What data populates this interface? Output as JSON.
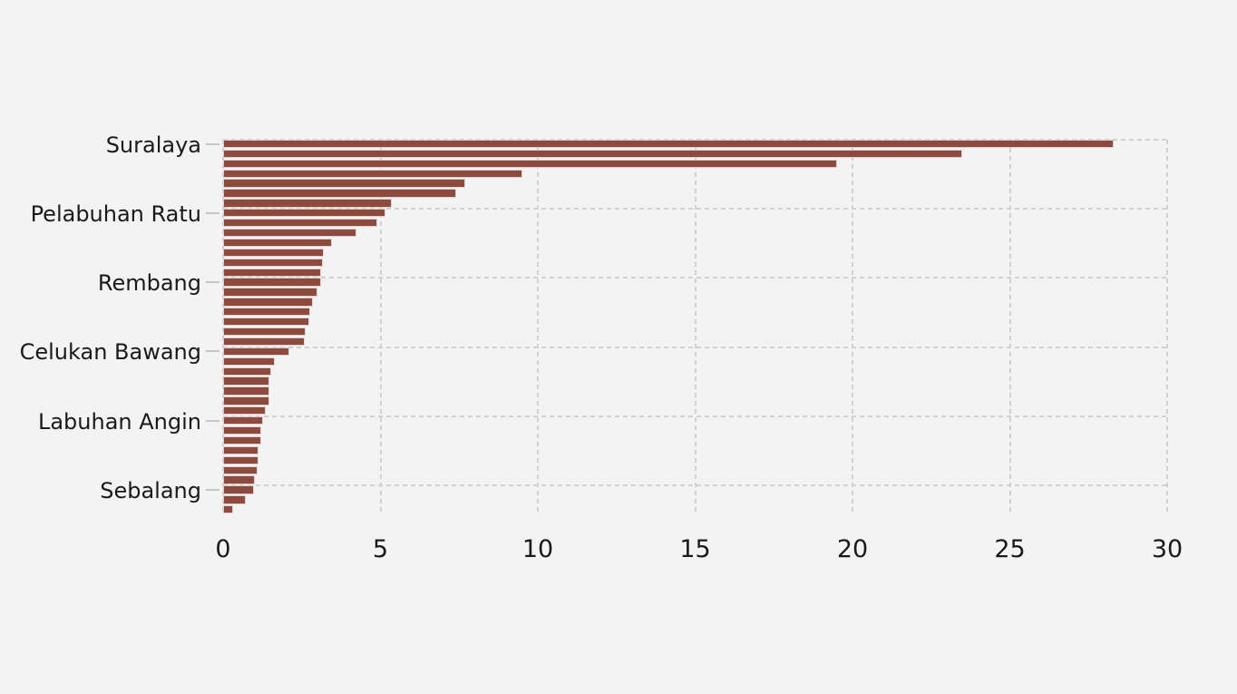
{
  "chart_data": {
    "type": "bar",
    "orientation": "horizontal",
    "title": "",
    "xlabel": "",
    "ylabel": "",
    "xlim": [
      0,
      30
    ],
    "xticks": [
      0,
      5,
      10,
      15,
      20,
      25,
      30
    ],
    "grid": "dashed",
    "legend": "none",
    "label_every_n_bars": 7,
    "ytick_labels": [
      "Suralaya",
      "Pelabuhan Ratu",
      "Rembang",
      "Celukan Bawang",
      "Labuhan Angin",
      "Sebalang"
    ],
    "values": [
      28.3,
      23.5,
      19.5,
      9.5,
      7.7,
      7.4,
      5.35,
      5.15,
      4.9,
      4.25,
      3.45,
      3.2,
      3.18,
      3.12,
      3.1,
      3.0,
      2.85,
      2.76,
      2.73,
      2.62,
      2.6,
      2.1,
      1.65,
      1.54,
      1.48,
      1.47,
      1.46,
      1.35,
      1.27,
      1.22,
      1.2,
      1.13,
      1.12,
      1.1,
      1.0,
      0.99,
      0.71,
      0.33
    ],
    "colors": {
      "background": "#f4f3f4",
      "bar_fill": "#8d4b40",
      "bar_edge": "#dccfcb",
      "gridline": "#d2d0d1",
      "tick_mark": "#c6c4c5",
      "text": "#1a1a1a"
    }
  }
}
